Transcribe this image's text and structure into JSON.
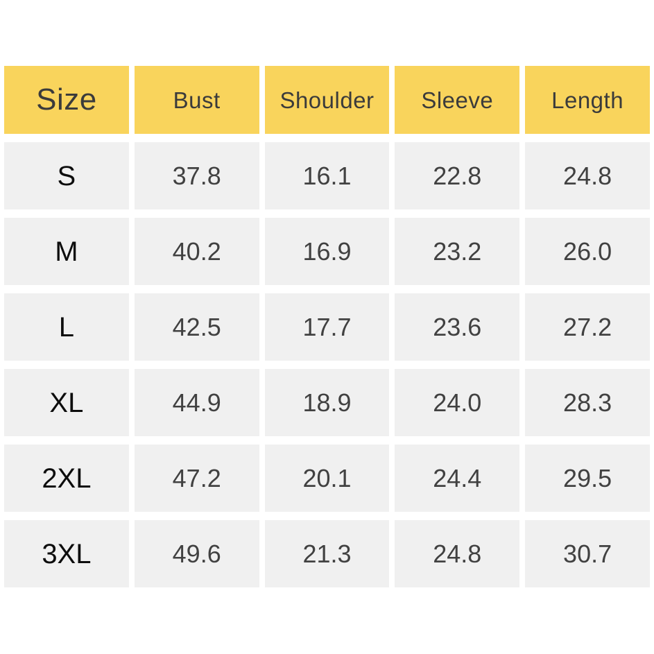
{
  "colors": {
    "background": "#FFFFFF",
    "header_bg": "#F9D45C",
    "header_text": "#3B3B3B",
    "cell_bg": "#F0F0F0",
    "value_text": "#414141",
    "size_label_text": "#0D0D0D"
  },
  "chart_data": {
    "type": "table",
    "title": "",
    "columns": [
      "Size",
      "Bust",
      "Shoulder",
      "Sleeve",
      "Length"
    ],
    "rows": [
      [
        "S",
        "37.8",
        "16.1",
        "22.8",
        "24.8"
      ],
      [
        "M",
        "40.2",
        "16.9",
        "23.2",
        "26.0"
      ],
      [
        "L",
        "42.5",
        "17.7",
        "23.6",
        "27.2"
      ],
      [
        "XL",
        "44.9",
        "18.9",
        "24.0",
        "28.3"
      ],
      [
        "2XL",
        "47.2",
        "20.1",
        "24.4",
        "29.5"
      ],
      [
        "3XL",
        "49.6",
        "21.3",
        "24.8",
        "30.7"
      ]
    ],
    "layout": {
      "header_position": "top",
      "grid": "off",
      "cell_gutter_color": "#FFFFFF"
    }
  }
}
